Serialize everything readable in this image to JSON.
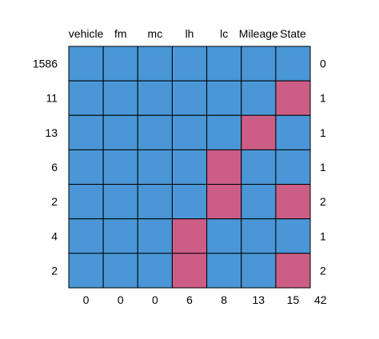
{
  "chart_data": {
    "type": "heatmap",
    "title": "",
    "columns": [
      "vehicle",
      "fm",
      "mc",
      "lh",
      "lc",
      "Mileage",
      "State"
    ],
    "rows": [
      {
        "count": "1586",
        "pattern": [
          1,
          1,
          1,
          1,
          1,
          1,
          1
        ],
        "missing": "0"
      },
      {
        "count": "11",
        "pattern": [
          1,
          1,
          1,
          1,
          1,
          1,
          0
        ],
        "missing": "1"
      },
      {
        "count": "13",
        "pattern": [
          1,
          1,
          1,
          1,
          1,
          0,
          1
        ],
        "missing": "1"
      },
      {
        "count": "6",
        "pattern": [
          1,
          1,
          1,
          1,
          0,
          1,
          1
        ],
        "missing": "1"
      },
      {
        "count": "2",
        "pattern": [
          1,
          1,
          1,
          1,
          0,
          1,
          0
        ],
        "missing": "2"
      },
      {
        "count": "4",
        "pattern": [
          1,
          1,
          1,
          0,
          1,
          1,
          1
        ],
        "missing": "1"
      },
      {
        "count": "2",
        "pattern": [
          1,
          1,
          1,
          0,
          1,
          1,
          0
        ],
        "missing": "2"
      }
    ],
    "column_missing_totals": [
      "0",
      "0",
      "0",
      "6",
      "8",
      "13",
      "15"
    ],
    "total_missing": "42",
    "colors": {
      "observed": "#4A96D6",
      "missing": "#CC5E86",
      "border": "#000000"
    }
  }
}
